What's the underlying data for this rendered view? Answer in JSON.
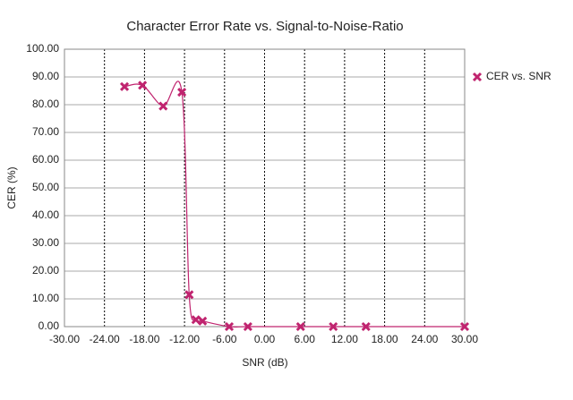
{
  "chart_data": {
    "type": "line",
    "title": "Character Error Rate vs. Signal-to-Noise-Ratio",
    "x_label": "SNR (dB)",
    "y_label": "CER (%)",
    "series": [
      {
        "name": "CER vs. SNR",
        "color": "#c0246f",
        "x": [
          -21,
          -18.3,
          -15.2,
          -12.4,
          -11.3,
          -10.3,
          -9.3,
          -5.3,
          -2.5,
          5.4,
          10.3,
          15.2,
          30
        ],
        "values": [
          86.5,
          87,
          79.5,
          84.5,
          11.5,
          2.5,
          2,
          0,
          0,
          0,
          0,
          0,
          0
        ]
      }
    ],
    "xlim": [
      -30,
      30
    ],
    "xticks": [
      {
        "value": -30,
        "label": "-30.00"
      },
      {
        "value": -24,
        "label": "-24.00"
      },
      {
        "value": -18,
        "label": "-18.00"
      },
      {
        "value": -12,
        "label": "-12.00"
      },
      {
        "value": -6,
        "label": "-6.00"
      },
      {
        "value": 0,
        "label": "0.00"
      },
      {
        "value": 6,
        "label": "6.00"
      },
      {
        "value": 12,
        "label": "12.00"
      },
      {
        "value": 18,
        "label": "18.00"
      },
      {
        "value": 24,
        "label": "24.00"
      },
      {
        "value": 30,
        "label": "30.00"
      }
    ],
    "ylim": [
      0,
      100
    ],
    "yticks": [
      {
        "value": 0,
        "label": "0.00"
      },
      {
        "value": 10,
        "label": "10.00"
      },
      {
        "value": 20,
        "label": "20.00"
      },
      {
        "value": 30,
        "label": "30.00"
      },
      {
        "value": 40,
        "label": "40.00"
      },
      {
        "value": 50,
        "label": "50.00"
      },
      {
        "value": 60,
        "label": "60.00"
      },
      {
        "value": 70,
        "label": "70.00"
      },
      {
        "value": 80,
        "label": "80.00"
      },
      {
        "value": 90,
        "label": "90.00"
      },
      {
        "value": 100,
        "label": "100.00"
      }
    ],
    "grid": true,
    "legend": "right"
  }
}
